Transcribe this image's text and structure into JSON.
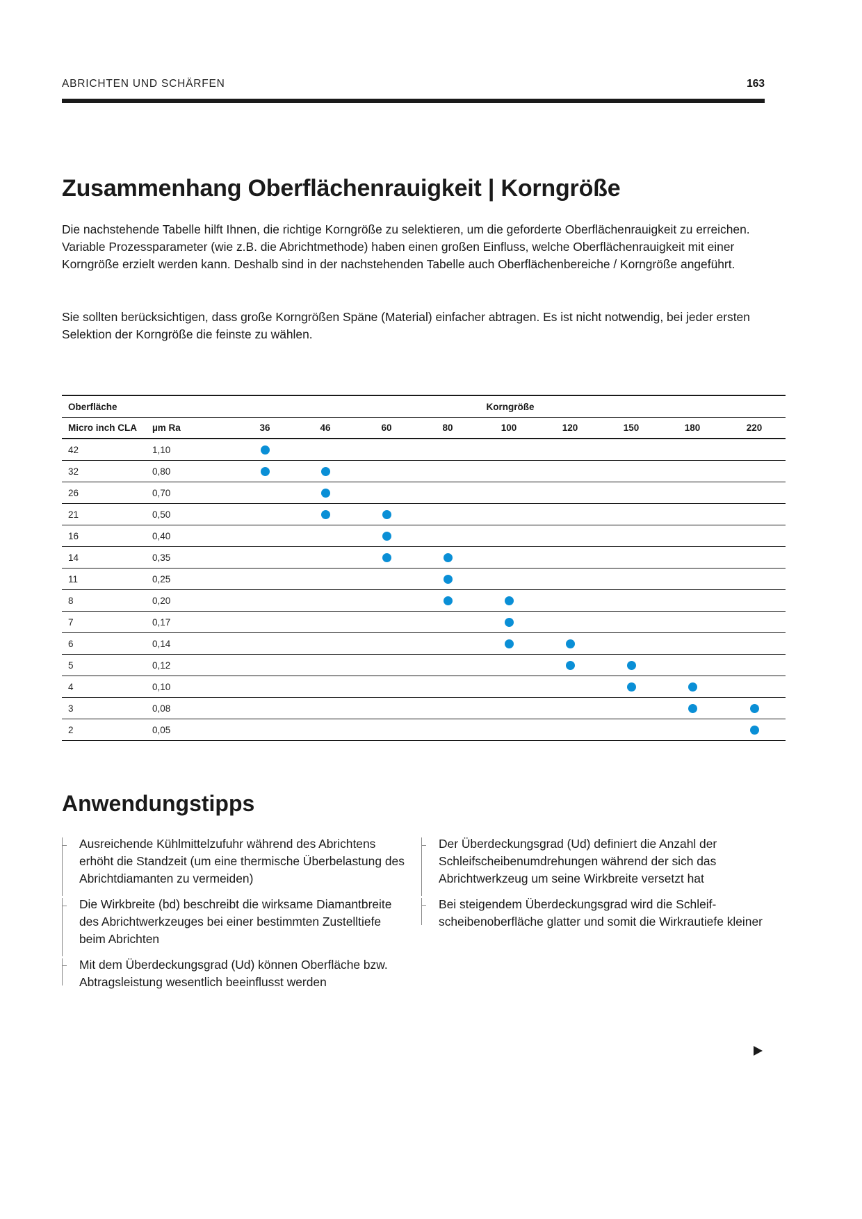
{
  "header": {
    "section_title": "ABRICHTEN UND SCHÄRFEN",
    "page_number": "163"
  },
  "main": {
    "title": "Zusammenhang Oberflächenrauigkeit | Korngröße",
    "intro_paragraphs": [
      "Die nachstehende Tabelle hilft Ihnen, die richtige Korngröße zu selektieren, um die geforderte Oberflächenrauigkeit zu erreichen. Variable Prozessparameter (wie z.B. die Abrichtmethode) haben einen großen Einfluss, welche Oberflächen­rauigkeit mit einer Korngröße erzielt werden kann. Deshalb sind in der nachstehenden Tabelle auch Oberflächenbereiche / Korngröße angeführt.",
      "Sie sollten berücksichtigen, dass große Korngrößen Späne (Material) einfacher abtragen. Es ist nicht notwendig, bei jeder ersten Selektion der Korngröße die feinste zu wählen."
    ]
  },
  "table": {
    "group_header_surface": "Oberfläche",
    "group_header_grit": "Korngröße",
    "col_micro_inch": "Micro inch CLA",
    "col_um_ra": "µm Ra",
    "grits": [
      "36",
      "46",
      "60",
      "80",
      "100",
      "120",
      "150",
      "180",
      "220"
    ],
    "rows": [
      {
        "micro_inch": "42",
        "um_ra": "1,10",
        "grits": [
          "36"
        ]
      },
      {
        "micro_inch": "32",
        "um_ra": "0,80",
        "grits": [
          "36",
          "46"
        ]
      },
      {
        "micro_inch": "26",
        "um_ra": "0,70",
        "grits": [
          "46"
        ]
      },
      {
        "micro_inch": "21",
        "um_ra": "0,50",
        "grits": [
          "46",
          "60"
        ]
      },
      {
        "micro_inch": "16",
        "um_ra": "0,40",
        "grits": [
          "60"
        ]
      },
      {
        "micro_inch": "14",
        "um_ra": "0,35",
        "grits": [
          "60",
          "80"
        ]
      },
      {
        "micro_inch": "11",
        "um_ra": "0,25",
        "grits": [
          "80"
        ]
      },
      {
        "micro_inch": "8",
        "um_ra": "0,20",
        "grits": [
          "80",
          "100"
        ]
      },
      {
        "micro_inch": "7",
        "um_ra": "0,17",
        "grits": [
          "100"
        ]
      },
      {
        "micro_inch": "6",
        "um_ra": "0,14",
        "grits": [
          "100",
          "120"
        ]
      },
      {
        "micro_inch": "5",
        "um_ra": "0,12",
        "grits": [
          "120",
          "150"
        ]
      },
      {
        "micro_inch": "4",
        "um_ra": "0,10",
        "grits": [
          "150",
          "180"
        ]
      },
      {
        "micro_inch": "3",
        "um_ra": "0,08",
        "grits": [
          "180",
          "220"
        ]
      },
      {
        "micro_inch": "2",
        "um_ra": "0,05",
        "grits": [
          "220"
        ]
      }
    ],
    "dot_color": "#0a8fd6"
  },
  "tips": {
    "heading": "Anwendungstipps",
    "left": [
      "Ausreichende Kühlmittelzufuhr während des Abrichtens erhöht die Standzeit (um eine thermische Überbelas­tung des Abrichtdiamanten zu vermeiden)",
      "Die Wirkbreite (bd) beschreibt die wirksame Diamant­breite des Abrichtwerkzeuges bei einer bestimmten Zustelltiefe beim Abrichten",
      "Mit dem Überdeckungsgrad (Ud) können Oberfläche bzw. Abtragsleistung wesentlich beeinflusst werden"
    ],
    "right": [
      "Der Überdeckungsgrad (Ud) definiert die Anzahl der Schleifscheibenumdrehungen während der sich das Abrichtwerkzeug um seine Wirkbreite versetzt hat",
      "Bei steigendem Überdeckungsgrad wird die Schleif­scheibenoberfläche glatter und somit die Wirkrautiefe kleiner"
    ]
  },
  "footer": {
    "next_page_icon": "play-arrow-icon"
  }
}
